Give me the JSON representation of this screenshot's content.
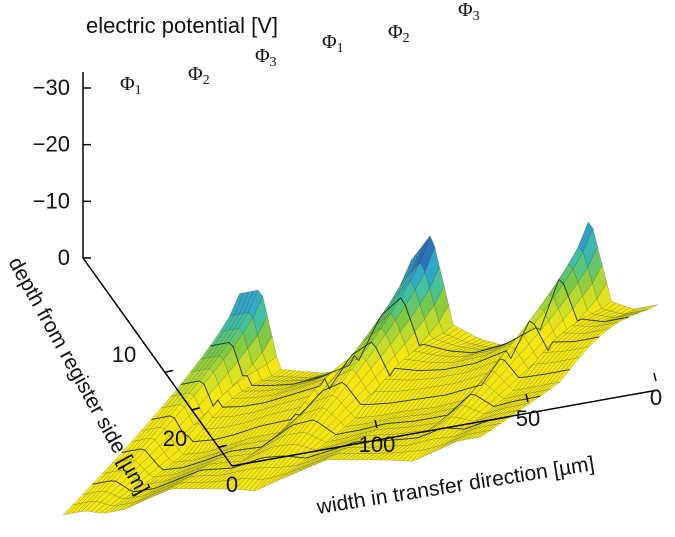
{
  "chart_data": {
    "type": "surface",
    "title": "electric potential [V]",
    "xlabel": "width in transfer direction [µm]",
    "ylabel": "depth from register side [µm]",
    "zlabel": "electric potential [V]",
    "x_ticks": [
      "0",
      "50",
      "100"
    ],
    "y_ticks": [
      "0",
      "10",
      "20"
    ],
    "z_ticks": [
      "0",
      "−10",
      "−20",
      "−30"
    ],
    "xlim": [
      0,
      135
    ],
    "ylim": [
      0,
      25
    ],
    "zlim": [
      0,
      -32
    ],
    "phase_labels": [
      {
        "label": "Φ",
        "sub": "1",
        "x": 130
      },
      {
        "label": "Φ",
        "sub": "2",
        "x": 112
      },
      {
        "label": "Φ",
        "sub": "3",
        "x": 92
      },
      {
        "label": "Φ",
        "sub": "1",
        "x": 68
      },
      {
        "label": "Φ",
        "sub": "2",
        "x": 45
      },
      {
        "label": "Φ",
        "sub": "3",
        "x": 22
      }
    ],
    "surface_profile": {
      "x_um": [
        0,
        8,
        15,
        22,
        30,
        40,
        50,
        58,
        66,
        73,
        80,
        90,
        100,
        108,
        115,
        122,
        128,
        135
      ],
      "potential_at_surface_V": [
        -11,
        -11,
        -13,
        -28,
        -13,
        -10,
        -9,
        -11,
        -14,
        -30,
        -26,
        -12,
        -10,
        -10,
        -11,
        -12,
        -26,
        -26
      ],
      "potential_at_depth_V": [
        -4,
        -4,
        -3,
        -2,
        -3,
        -4,
        -5,
        -4,
        -3,
        -2,
        -3,
        -4,
        -5,
        -4,
        -3,
        -3,
        -4,
        -4
      ]
    },
    "colormap": [
      "#2e3f9e",
      "#2d6fb8",
      "#33a9c9",
      "#44c39b",
      "#7cc845",
      "#c2dc2c",
      "#f5e613"
    ]
  }
}
